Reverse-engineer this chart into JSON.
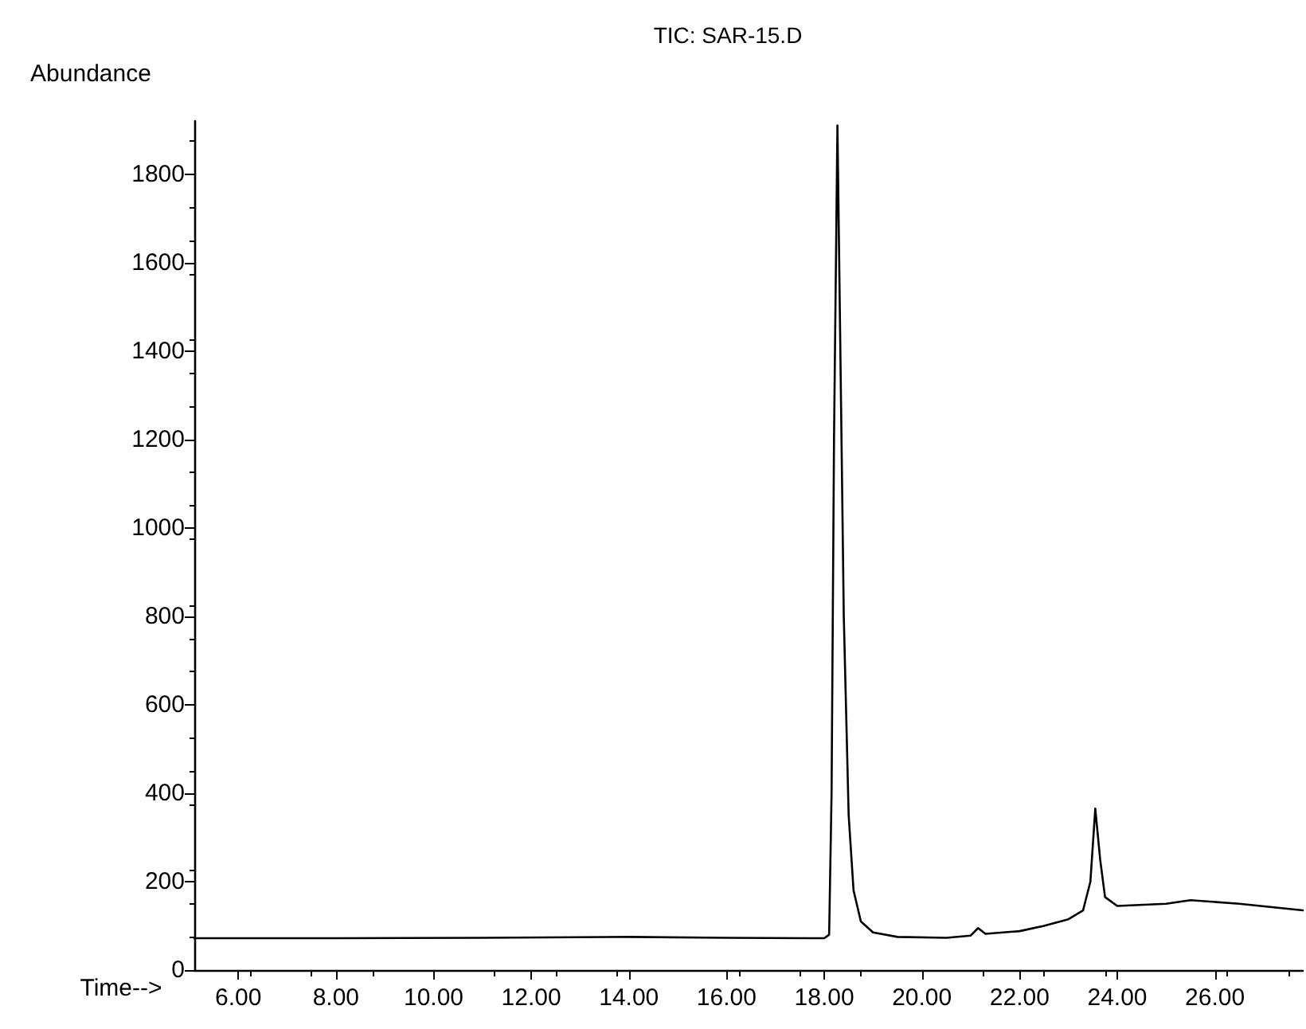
{
  "chart_data": {
    "type": "line",
    "title": "TIC: SAR-15.D",
    "xlabel": "Time-->",
    "ylabel": "Abundance",
    "x": [
      5.1,
      8.0,
      11.0,
      14.0,
      16.0,
      18.0,
      18.1,
      18.15,
      18.2,
      18.27,
      18.33,
      18.4,
      18.5,
      18.6,
      18.75,
      19.0,
      19.5,
      20.5,
      21.0,
      21.15,
      21.3,
      22.0,
      22.5,
      23.0,
      23.3,
      23.45,
      23.55,
      23.65,
      23.75,
      24.0,
      25.0,
      25.5,
      26.5,
      27.8
    ],
    "series": [
      {
        "color": "#000000",
        "values": [
          72,
          72,
          73,
          75,
          73,
          72,
          80,
          400,
          1200,
          1910,
          1400,
          800,
          350,
          180,
          110,
          85,
          75,
          73,
          78,
          95,
          82,
          88,
          100,
          115,
          135,
          200,
          365,
          250,
          165,
          145,
          150,
          158,
          150,
          135
        ]
      }
    ],
    "xlim": [
      5.1,
      27.8
    ],
    "xticks": [
      {
        "value": 6,
        "label": "6.00"
      },
      {
        "value": 8,
        "label": "8.00"
      },
      {
        "value": 10,
        "label": "10.00"
      },
      {
        "value": 12,
        "label": "12.00"
      },
      {
        "value": 14,
        "label": "14.00"
      },
      {
        "value": 16,
        "label": "16.00"
      },
      {
        "value": 18,
        "label": "18.00"
      },
      {
        "value": 20,
        "label": "20.00"
      },
      {
        "value": 22,
        "label": "22.00"
      },
      {
        "value": 24,
        "label": "24.00"
      },
      {
        "value": 26,
        "label": "26.00"
      }
    ],
    "ylim": [
      0,
      1920
    ],
    "yticks": [
      0,
      200,
      400,
      600,
      800,
      1000,
      1200,
      1400,
      1600,
      1800
    ],
    "marker": "none",
    "line_style": "solid"
  }
}
